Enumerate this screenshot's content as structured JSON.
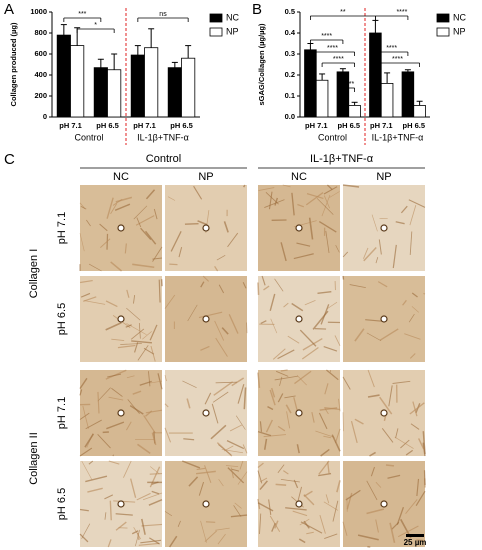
{
  "panels": {
    "a": "A",
    "b": "B",
    "c": "C"
  },
  "chart_data": [
    {
      "type": "bar",
      "y_label": "Collagen produced (µg)",
      "categories": [
        "pH 7.1",
        "pH 6.5",
        "pH 7.1",
        "pH 6.5"
      ],
      "groups": [
        "Control",
        "IL-1β+TNF-α"
      ],
      "series": [
        {
          "name": "NC",
          "color": "#000000",
          "values": [
            780,
            470,
            590,
            470
          ],
          "errors": [
            100,
            80,
            90,
            50
          ]
        },
        {
          "name": "NP",
          "color": "#ffffff",
          "values": [
            680,
            450,
            660,
            560
          ],
          "errors": [
            170,
            150,
            180,
            120
          ]
        }
      ],
      "ylim": [
        0,
        1000
      ],
      "yticks": [
        0,
        200,
        400,
        600,
        800,
        1000
      ],
      "annotations": [
        "***",
        "*",
        "ns"
      ],
      "legend": "upper right"
    },
    {
      "type": "bar",
      "y_label": "sGAG/Collagen (µg/µg)",
      "categories": [
        "pH 7.1",
        "pH 6.5",
        "pH 7.1",
        "pH 6.5"
      ],
      "groups": [
        "Control",
        "IL-1β+TNF-α"
      ],
      "series": [
        {
          "name": "NC",
          "color": "#000000",
          "values": [
            0.32,
            0.215,
            0.4,
            0.215
          ],
          "errors": [
            0.03,
            0.015,
            0.06,
            0.01
          ]
        },
        {
          "name": "NP",
          "color": "#ffffff",
          "values": [
            0.175,
            0.055,
            0.16,
            0.055
          ],
          "errors": [
            0.03,
            0.015,
            0.05,
            0.02
          ]
        }
      ],
      "ylim": [
        0,
        0.5
      ],
      "yticks": [
        {
          "value": 0,
          "label": "0.0"
        },
        0.1,
        0.2,
        0.3,
        0.4,
        0.5
      ],
      "annotations": [
        "**",
        "****",
        "****",
        "****",
        "****",
        "****",
        "****",
        "****"
      ],
      "legend": "upper right"
    }
  ],
  "panel_c": {
    "groups": [
      "Control",
      "IL-1β+TNF-α"
    ],
    "columns": [
      "NC",
      "NP",
      "NC",
      "NP"
    ],
    "stains": [
      "Collagen I",
      "Collagen II"
    ],
    "rows": [
      "pH 7.1",
      "pH 6.5",
      "pH 7.1",
      "pH 6.5"
    ],
    "scale_bar": "25 µm"
  }
}
